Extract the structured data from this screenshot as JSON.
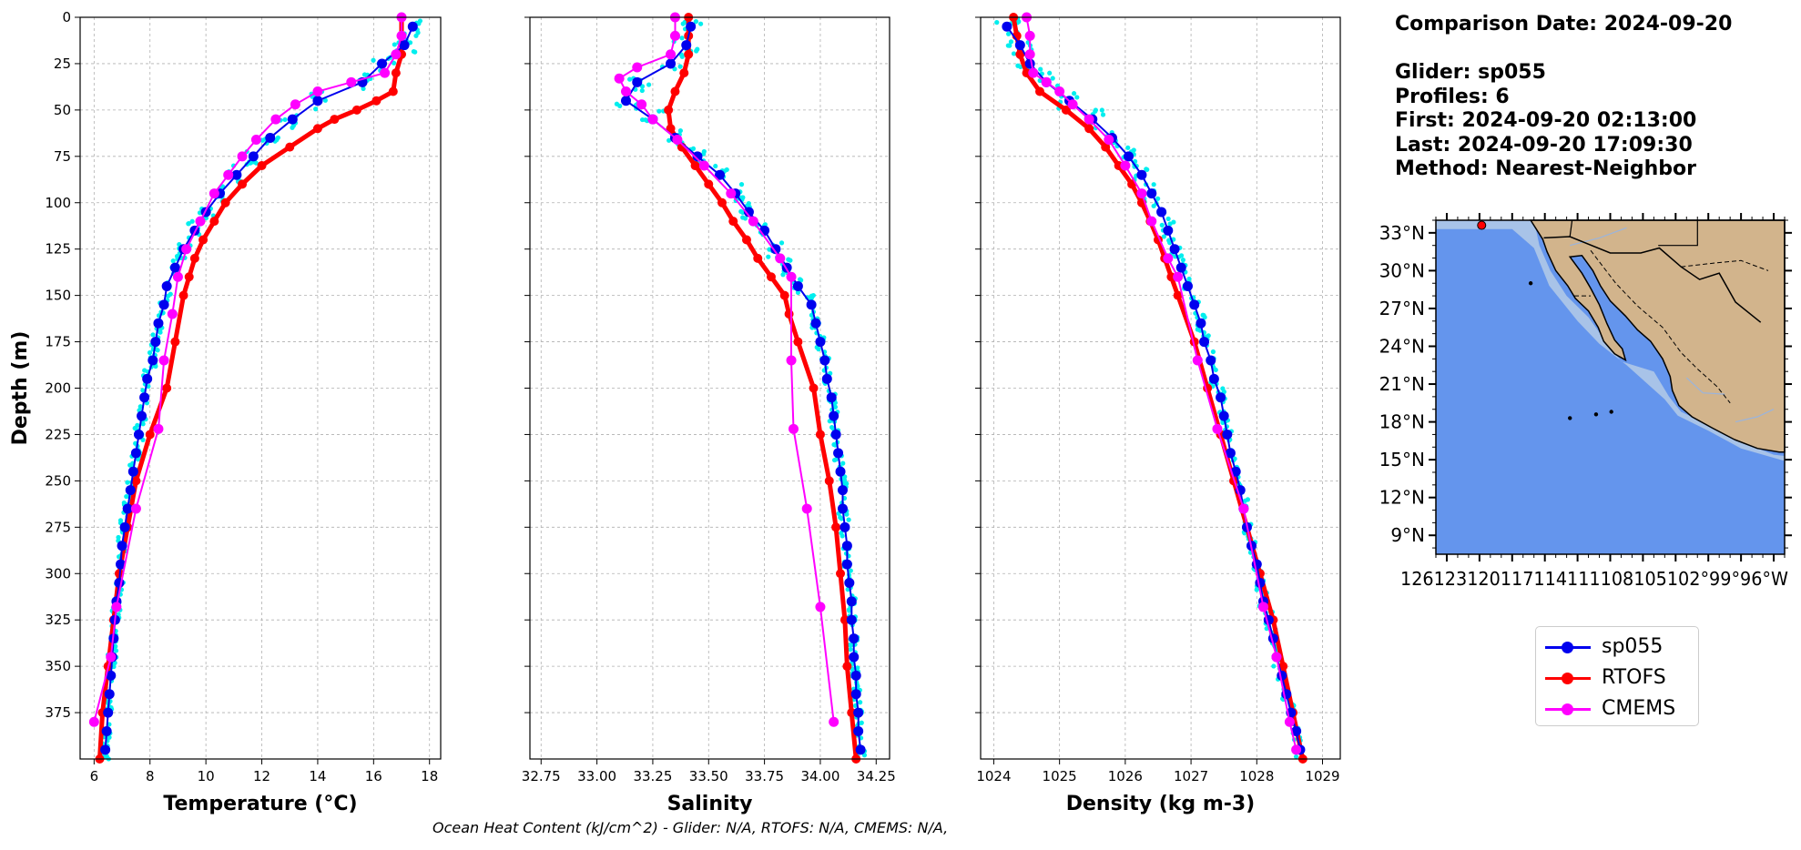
{
  "info": {
    "comparison_date": "Comparison Date: 2024-09-20",
    "glider": "Glider: sp055",
    "profiles": "Profiles: 6",
    "first": "First: 2024-09-20 02:13:00",
    "last": "Last: 2024-09-20 17:09:30",
    "method": "Method: Nearest-Neighbor"
  },
  "footer_text": "Ocean Heat Content (kJ/cm^2) - Glider: N/A,  RTOFS: N/A,  CMEMS: N/A,",
  "colors": {
    "glider": "#0000ee",
    "rtofs": "#ff0000",
    "cmems": "#ff00ff",
    "raw": "#00eeee",
    "ocean": "#6495ed",
    "shelf": "#a8c3e8",
    "land": "#d2b48c"
  },
  "legend": [
    {
      "key": "glider",
      "label": "sp055"
    },
    {
      "key": "rtofs",
      "label": "RTOFS"
    },
    {
      "key": "cmems",
      "label": "CMEMS"
    }
  ],
  "chart_data": [
    {
      "type": "line",
      "id": "temperature",
      "xlabel": "Temperature (°C)",
      "ylabel": "Depth (m)",
      "xlim": [
        5.5,
        18.4
      ],
      "ylim": [
        400,
        0
      ],
      "xticks": [
        6,
        8,
        10,
        12,
        14,
        16,
        18
      ],
      "yticks": [
        0,
        25,
        50,
        75,
        100,
        125,
        150,
        175,
        200,
        225,
        250,
        275,
        300,
        325,
        350,
        375
      ],
      "grid": true,
      "series": [
        {
          "name": "sp055",
          "key": "glider",
          "depth": [
            5,
            15,
            25,
            35,
            45,
            55,
            65,
            75,
            85,
            95,
            105,
            115,
            125,
            135,
            145,
            155,
            165,
            175,
            185,
            195,
            205,
            215,
            225,
            235,
            245,
            255,
            265,
            275,
            285,
            295,
            305,
            315,
            325,
            335,
            345,
            355,
            365,
            375,
            385,
            395
          ],
          "values": [
            17.4,
            17.1,
            16.3,
            15.6,
            14.0,
            13.1,
            12.3,
            11.7,
            11.1,
            10.5,
            10.0,
            9.6,
            9.2,
            8.9,
            8.6,
            8.5,
            8.3,
            8.2,
            8.1,
            7.9,
            7.8,
            7.7,
            7.6,
            7.5,
            7.4,
            7.3,
            7.2,
            7.1,
            7.0,
            6.95,
            6.9,
            6.8,
            6.75,
            6.7,
            6.65,
            6.6,
            6.55,
            6.5,
            6.45,
            6.4
          ]
        },
        {
          "name": "RTOFS",
          "key": "rtofs",
          "depth": [
            0,
            10,
            20,
            30,
            40,
            45,
            50,
            55,
            60,
            70,
            80,
            90,
            100,
            110,
            120,
            130,
            140,
            150,
            175,
            200,
            225,
            250,
            275,
            300,
            325,
            350,
            375,
            400
          ],
          "values": [
            17.0,
            17.0,
            17.0,
            16.8,
            16.7,
            16.1,
            15.4,
            14.6,
            14.0,
            13.0,
            12.0,
            11.3,
            10.7,
            10.3,
            9.9,
            9.6,
            9.4,
            9.2,
            8.9,
            8.6,
            8.0,
            7.5,
            7.2,
            6.9,
            6.7,
            6.5,
            6.3,
            6.2
          ]
        },
        {
          "name": "CMEMS",
          "key": "cmems",
          "depth": [
            0,
            10,
            20,
            30,
            35,
            40,
            47,
            55,
            66,
            75,
            85,
            95,
            110,
            125,
            140,
            160,
            185,
            222,
            265,
            318,
            345,
            380
          ],
          "values": [
            17.0,
            17.0,
            16.8,
            16.4,
            15.2,
            14.0,
            13.2,
            12.5,
            11.8,
            11.3,
            10.8,
            10.3,
            9.8,
            9.3,
            9.0,
            8.8,
            8.5,
            8.3,
            7.5,
            6.8,
            6.6,
            6.0
          ]
        }
      ]
    },
    {
      "type": "line",
      "id": "salinity",
      "xlabel": "Salinity",
      "ylabel": "",
      "xlim": [
        32.7,
        34.31
      ],
      "ylim": [
        400,
        0
      ],
      "xticks": [
        32.75,
        33.0,
        33.25,
        33.5,
        33.75,
        34.0,
        34.25
      ],
      "yticks": [
        0,
        25,
        50,
        75,
        100,
        125,
        150,
        175,
        200,
        225,
        250,
        275,
        300,
        325,
        350,
        375
      ],
      "grid": true,
      "series": [
        {
          "name": "sp055",
          "key": "glider",
          "depth": [
            5,
            15,
            25,
            35,
            45,
            55,
            65,
            75,
            85,
            95,
            105,
            115,
            125,
            135,
            145,
            155,
            165,
            175,
            185,
            195,
            205,
            215,
            225,
            235,
            245,
            255,
            265,
            275,
            285,
            295,
            305,
            315,
            325,
            335,
            345,
            355,
            365,
            375,
            385,
            395
          ],
          "values": [
            33.42,
            33.4,
            33.33,
            33.18,
            33.13,
            33.25,
            33.35,
            33.45,
            33.55,
            33.62,
            33.68,
            33.75,
            33.8,
            33.85,
            33.9,
            33.96,
            33.98,
            34.0,
            34.02,
            34.03,
            34.05,
            34.06,
            34.07,
            34.08,
            34.09,
            34.1,
            34.1,
            34.11,
            34.12,
            34.12,
            34.13,
            34.14,
            34.14,
            34.15,
            34.15,
            34.16,
            34.16,
            34.17,
            34.17,
            34.18
          ]
        },
        {
          "name": "RTOFS",
          "key": "rtofs",
          "depth": [
            0,
            10,
            20,
            30,
            40,
            50,
            60,
            70,
            80,
            90,
            100,
            110,
            120,
            130,
            140,
            150,
            160,
            175,
            200,
            225,
            250,
            275,
            300,
            325,
            350,
            375,
            400
          ],
          "values": [
            33.41,
            33.41,
            33.41,
            33.39,
            33.35,
            33.32,
            33.33,
            33.38,
            33.44,
            33.5,
            33.56,
            33.61,
            33.67,
            33.72,
            33.78,
            33.84,
            33.86,
            33.9,
            33.97,
            34.0,
            34.04,
            34.07,
            34.09,
            34.11,
            34.12,
            34.14,
            34.16
          ]
        },
        {
          "name": "CMEMS",
          "key": "cmems",
          "depth": [
            0,
            10,
            20,
            27,
            33,
            40,
            47,
            55,
            66,
            80,
            95,
            110,
            130,
            140,
            185,
            222,
            265,
            318,
            380
          ],
          "values": [
            33.35,
            33.35,
            33.33,
            33.18,
            33.1,
            33.13,
            33.2,
            33.25,
            33.36,
            33.48,
            33.6,
            33.7,
            33.82,
            33.87,
            33.87,
            33.88,
            33.94,
            34.0,
            34.06
          ]
        }
      ]
    },
    {
      "type": "line",
      "id": "density",
      "xlabel": "Density (kg m-3)",
      "ylabel": "",
      "xlim": [
        1023.8,
        1029.27
      ],
      "ylim": [
        400,
        0
      ],
      "xticks": [
        1024,
        1025,
        1026,
        1027,
        1028,
        1029
      ],
      "yticks": [
        0,
        25,
        50,
        75,
        100,
        125,
        150,
        175,
        200,
        225,
        250,
        275,
        300,
        325,
        350,
        375
      ],
      "grid": true,
      "series": [
        {
          "name": "sp055",
          "key": "glider",
          "depth": [
            5,
            15,
            25,
            35,
            45,
            55,
            65,
            75,
            85,
            95,
            105,
            115,
            125,
            135,
            145,
            155,
            165,
            175,
            185,
            195,
            205,
            215,
            225,
            235,
            245,
            255,
            265,
            275,
            285,
            295,
            305,
            315,
            325,
            335,
            345,
            355,
            365,
            375,
            385,
            395
          ],
          "values": [
            1024.2,
            1024.4,
            1024.55,
            1024.8,
            1025.15,
            1025.5,
            1025.8,
            1026.05,
            1026.25,
            1026.4,
            1026.55,
            1026.65,
            1026.75,
            1026.85,
            1026.95,
            1027.05,
            1027.15,
            1027.2,
            1027.3,
            1027.35,
            1027.45,
            1027.5,
            1027.55,
            1027.6,
            1027.68,
            1027.75,
            1027.8,
            1027.85,
            1027.92,
            1028.0,
            1028.05,
            1028.1,
            1028.18,
            1028.25,
            1028.3,
            1028.38,
            1028.45,
            1028.52,
            1028.6,
            1028.66
          ]
        },
        {
          "name": "RTOFS",
          "key": "rtofs",
          "depth": [
            0,
            10,
            20,
            30,
            40,
            50,
            60,
            70,
            80,
            90,
            100,
            110,
            120,
            130,
            140,
            150,
            175,
            200,
            225,
            250,
            275,
            300,
            325,
            350,
            375,
            400
          ],
          "values": [
            1024.3,
            1024.35,
            1024.4,
            1024.5,
            1024.7,
            1025.1,
            1025.45,
            1025.7,
            1025.9,
            1026.1,
            1026.25,
            1026.38,
            1026.5,
            1026.6,
            1026.7,
            1026.8,
            1027.05,
            1027.25,
            1027.45,
            1027.65,
            1027.85,
            1028.05,
            1028.25,
            1028.4,
            1028.55,
            1028.7
          ]
        },
        {
          "name": "CMEMS",
          "key": "cmems",
          "depth": [
            0,
            10,
            20,
            30,
            35,
            40,
            47,
            55,
            66,
            80,
            95,
            110,
            130,
            140,
            185,
            222,
            265,
            318,
            345,
            380,
            395
          ],
          "values": [
            1024.5,
            1024.55,
            1024.55,
            1024.6,
            1024.8,
            1025.0,
            1025.2,
            1025.45,
            1025.75,
            1026.0,
            1026.25,
            1026.4,
            1026.65,
            1026.8,
            1027.1,
            1027.4,
            1027.8,
            1028.1,
            1028.3,
            1028.5,
            1028.6
          ]
        }
      ]
    }
  ],
  "map": {
    "lat_ticks": [
      "33°N",
      "30°N",
      "27°N",
      "24°N",
      "21°N",
      "18°N",
      "15°N",
      "12°N",
      "9°N"
    ],
    "lon_ticks": [
      "126°W",
      "123°W",
      "120°W",
      "117°W",
      "114°W",
      "111°W",
      "108°W",
      "105°W",
      "102°W",
      "99°W",
      "96°W"
    ],
    "lon_tick_text": "126123120117114111108105102°99°96°W",
    "lat_range": [
      7.5,
      34.0
    ],
    "lon_range": [
      -127.0,
      -95.0
    ],
    "glider_position": {
      "lat": 33.6,
      "lon": -122.8
    }
  }
}
